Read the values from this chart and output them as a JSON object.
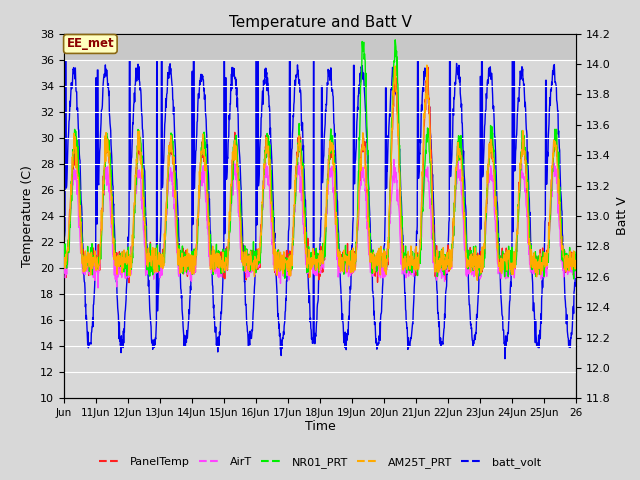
{
  "title": "Temperature and Batt V",
  "xlabel": "Time",
  "ylabel_left": "Temperature (C)",
  "ylabel_right": "Batt V",
  "annotation_text": "EE_met",
  "annotation_bg": "#ffffc0",
  "annotation_border": "#8b6914",
  "annotation_text_color": "#8b0000",
  "ylim_left": [
    10,
    38
  ],
  "ylim_right": [
    11.8,
    14.2
  ],
  "yticks_left": [
    10,
    12,
    14,
    16,
    18,
    20,
    22,
    24,
    26,
    28,
    30,
    32,
    34,
    36,
    38
  ],
  "yticks_right": [
    11.8,
    12.0,
    12.2,
    12.4,
    12.6,
    12.8,
    13.0,
    13.2,
    13.4,
    13.6,
    13.8,
    14.0,
    14.2
  ],
  "xtick_labels": [
    "Jun",
    "11Jun",
    "12Jun",
    "13Jun",
    "14Jun",
    "15Jun",
    "16Jun",
    "17Jun",
    "18Jun",
    "19Jun",
    "20Jun",
    "21Jun",
    "22Jun",
    "23Jun",
    "24Jun",
    "25Jun",
    "26"
  ],
  "background_color": "#d8d8d8",
  "plot_bg_light": "#e8e8e8",
  "plot_bg_dark": "#d0d0d0",
  "grid_color": "#c0c0c0",
  "series": [
    {
      "name": "PanelTemp",
      "color": "#ff2020",
      "lw": 1.0
    },
    {
      "name": "AirT",
      "color": "#ff44ff",
      "lw": 1.0
    },
    {
      "name": "NR01_PRT",
      "color": "#00ee00",
      "lw": 1.0
    },
    {
      "name": "AM25T_PRT",
      "color": "#ffaa00",
      "lw": 1.0
    },
    {
      "name": "batt_volt",
      "color": "#0000ee",
      "lw": 1.0
    }
  ],
  "n_days": 16,
  "pts_per_day": 96,
  "figsize": [
    6.4,
    4.8
  ],
  "dpi": 100
}
